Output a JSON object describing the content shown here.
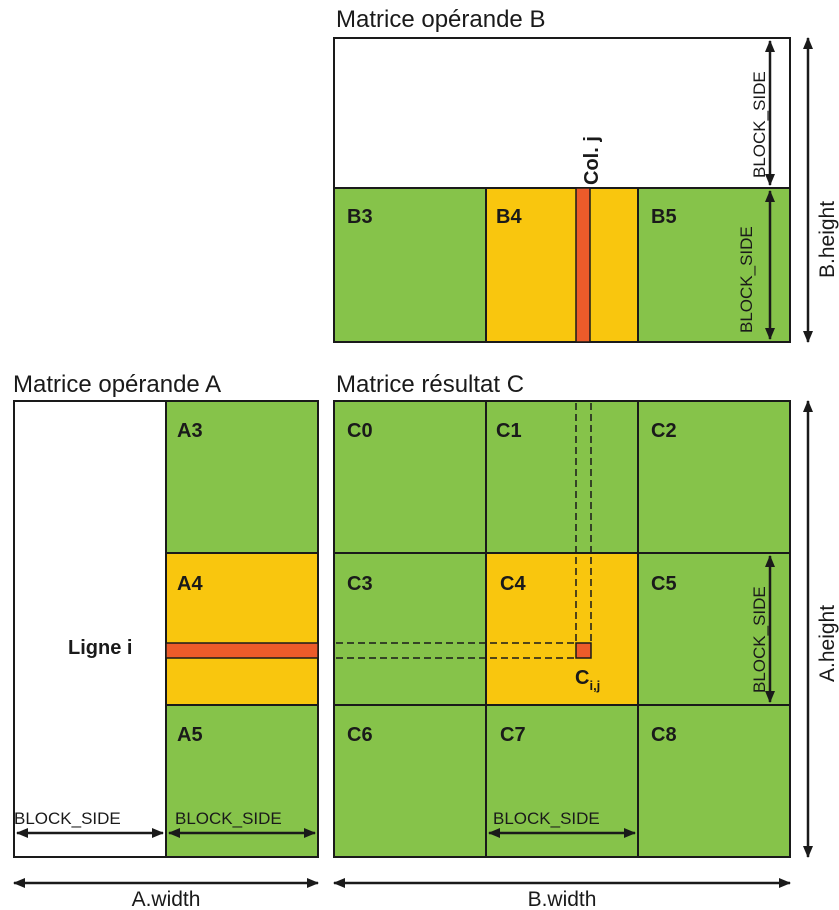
{
  "titles": {
    "matrix_b": "Matrice opérande B",
    "matrix_a": "Matrice opérande A",
    "matrix_c": "Matrice résultat C"
  },
  "blocks": {
    "b3": "B3",
    "b4": "B4",
    "b5": "B5",
    "a3": "A3",
    "a4": "A4",
    "a5": "A5",
    "c0": "C0",
    "c1": "C1",
    "c2": "C2",
    "c3": "C3",
    "c4": "C4",
    "c5": "C5",
    "c6": "C6",
    "c7": "C7",
    "c8": "C8"
  },
  "labels": {
    "col_j": "Col. j",
    "ligne_i": "Ligne i",
    "cij_base": "C",
    "cij_sub": "i,j",
    "block_side": "BLOCK_SIDE",
    "b_height": "B.height",
    "a_height": "A.height",
    "a_width": "A.width",
    "b_width": "B.width"
  },
  "colors": {
    "green": "#86c34a",
    "yellow": "#f9c60e",
    "red": "#ec5b2a",
    "stroke": "#1a1a1a",
    "white": "#ffffff"
  }
}
